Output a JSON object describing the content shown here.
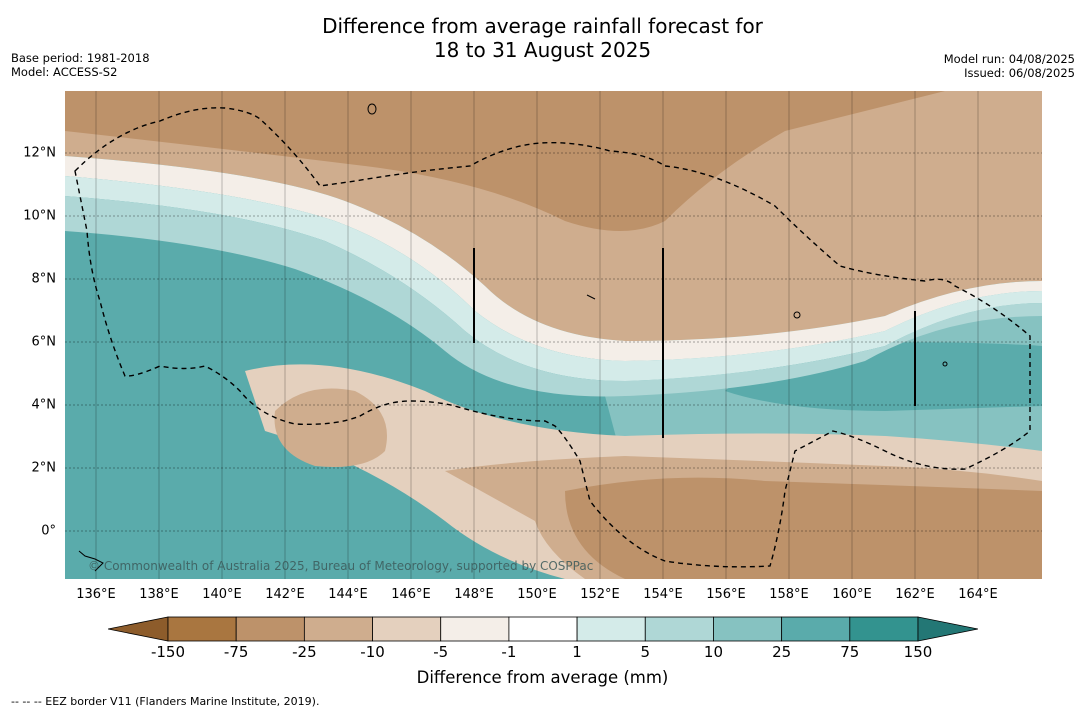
{
  "title_line1": "Difference from average rainfall forecast for",
  "title_line2": "18 to 31 August 2025",
  "base_period": "Base period: 1981-2018",
  "model": "Model: ACCESS-S2",
  "model_run": "Model run: 04/08/2025",
  "issued": "Issued: 06/08/2025",
  "longitude_labels": [
    "136°E",
    "138°E",
    "140°E",
    "142°E",
    "144°E",
    "146°E",
    "148°E",
    "150°E",
    "152°E",
    "154°E",
    "156°E",
    "158°E",
    "160°E",
    "162°E",
    "164°E"
  ],
  "latitude_labels": [
    "12°N",
    "10°N",
    "8°N",
    "6°N",
    "4°N",
    "2°N",
    "0°"
  ],
  "credit": "© Commonwealth of Australia 2025, Bureau of Meteorology, supported by COSPPac",
  "colorbar": {
    "ticks": [
      "-150",
      "-75",
      "-25",
      "-10",
      "-5",
      "-1",
      "1",
      "5",
      "10",
      "25",
      "75",
      "150"
    ],
    "colors": [
      "#a97640",
      "#bd926a",
      "#cfad8e",
      "#e4d0be",
      "#f4eee8",
      "#ffffff",
      "#d4ebe9",
      "#afd7d6",
      "#86c2c1",
      "#5aabab",
      "#33938f"
    ],
    "extend_low_color": "#8d5c2b",
    "extend_high_color": "#237775",
    "label": "Difference from average (mm)"
  },
  "footnote": "--  --  -- EEZ border V11 (Flanders Marine Institute, 2019)."
}
